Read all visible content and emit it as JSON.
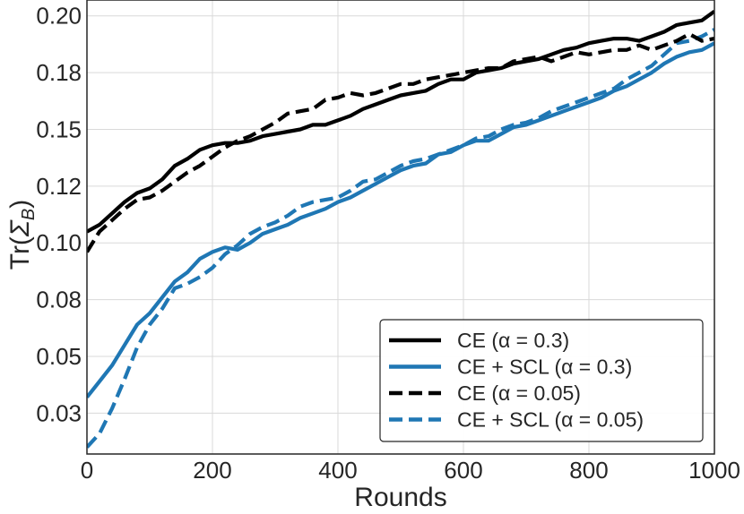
{
  "chart_data": {
    "type": "line",
    "xlabel": "Rounds",
    "ylabel_main": "Tr(",
    "ylabel_sigma": "Σ",
    "ylabel_sub": "B",
    "ylabel_close": ")",
    "xlim": [
      0,
      1000
    ],
    "ylim": [
      0.007,
      0.207
    ],
    "xticks": [
      0,
      200,
      400,
      600,
      800,
      1000
    ],
    "xtick_labels": [
      "0",
      "200",
      "400",
      "600",
      "800",
      "1000"
    ],
    "yticks": [
      0.025,
      0.05,
      0.075,
      0.1,
      0.125,
      0.15,
      0.175,
      0.2
    ],
    "ytick_labels": [
      "0.03",
      "0.05",
      "0.08",
      "0.10",
      "0.12",
      "0.15",
      "0.18",
      "0.20"
    ],
    "grid": true,
    "legend_position": "lower-right",
    "series": [
      {
        "name": "CE (α = 0.3)",
        "color": "#000000",
        "dash": "solid",
        "points": [
          [
            0,
            0.105
          ],
          [
            20,
            0.108
          ],
          [
            40,
            0.113
          ],
          [
            60,
            0.118
          ],
          [
            80,
            0.122
          ],
          [
            100,
            0.124
          ],
          [
            120,
            0.128
          ],
          [
            140,
            0.134
          ],
          [
            160,
            0.137
          ],
          [
            180,
            0.141
          ],
          [
            200,
            0.143
          ],
          [
            220,
            0.144
          ],
          [
            240,
            0.144
          ],
          [
            260,
            0.145
          ],
          [
            280,
            0.147
          ],
          [
            300,
            0.148
          ],
          [
            320,
            0.149
          ],
          [
            340,
            0.15
          ],
          [
            360,
            0.152
          ],
          [
            380,
            0.152
          ],
          [
            400,
            0.154
          ],
          [
            420,
            0.156
          ],
          [
            440,
            0.159
          ],
          [
            460,
            0.161
          ],
          [
            480,
            0.163
          ],
          [
            500,
            0.165
          ],
          [
            520,
            0.166
          ],
          [
            540,
            0.167
          ],
          [
            560,
            0.17
          ],
          [
            580,
            0.172
          ],
          [
            600,
            0.172
          ],
          [
            620,
            0.175
          ],
          [
            640,
            0.176
          ],
          [
            660,
            0.177
          ],
          [
            680,
            0.179
          ],
          [
            700,
            0.18
          ],
          [
            720,
            0.181
          ],
          [
            740,
            0.183
          ],
          [
            760,
            0.185
          ],
          [
            780,
            0.186
          ],
          [
            800,
            0.188
          ],
          [
            820,
            0.189
          ],
          [
            840,
            0.19
          ],
          [
            860,
            0.19
          ],
          [
            880,
            0.189
          ],
          [
            900,
            0.191
          ],
          [
            920,
            0.193
          ],
          [
            940,
            0.196
          ],
          [
            960,
            0.197
          ],
          [
            980,
            0.198
          ],
          [
            1000,
            0.202
          ]
        ]
      },
      {
        "name": "CE + SCL (α = 0.3)",
        "color": "#1f77b4",
        "dash": "solid",
        "points": [
          [
            0,
            0.032
          ],
          [
            20,
            0.039
          ],
          [
            40,
            0.046
          ],
          [
            60,
            0.055
          ],
          [
            80,
            0.064
          ],
          [
            100,
            0.069
          ],
          [
            120,
            0.076
          ],
          [
            140,
            0.083
          ],
          [
            160,
            0.087
          ],
          [
            180,
            0.093
          ],
          [
            200,
            0.096
          ],
          [
            220,
            0.098
          ],
          [
            240,
            0.097
          ],
          [
            260,
            0.1
          ],
          [
            280,
            0.104
          ],
          [
            300,
            0.106
          ],
          [
            320,
            0.108
          ],
          [
            340,
            0.111
          ],
          [
            360,
            0.113
          ],
          [
            380,
            0.115
          ],
          [
            400,
            0.118
          ],
          [
            420,
            0.12
          ],
          [
            440,
            0.123
          ],
          [
            460,
            0.126
          ],
          [
            480,
            0.129
          ],
          [
            500,
            0.132
          ],
          [
            520,
            0.134
          ],
          [
            540,
            0.135
          ],
          [
            560,
            0.139
          ],
          [
            580,
            0.14
          ],
          [
            600,
            0.143
          ],
          [
            620,
            0.145
          ],
          [
            640,
            0.145
          ],
          [
            660,
            0.148
          ],
          [
            680,
            0.151
          ],
          [
            700,
            0.152
          ],
          [
            720,
            0.154
          ],
          [
            740,
            0.156
          ],
          [
            760,
            0.158
          ],
          [
            780,
            0.16
          ],
          [
            800,
            0.162
          ],
          [
            820,
            0.164
          ],
          [
            840,
            0.167
          ],
          [
            860,
            0.169
          ],
          [
            880,
            0.172
          ],
          [
            900,
            0.175
          ],
          [
            920,
            0.179
          ],
          [
            940,
            0.182
          ],
          [
            960,
            0.184
          ],
          [
            980,
            0.185
          ],
          [
            1000,
            0.188
          ]
        ]
      },
      {
        "name": "CE (α = 0.05)",
        "color": "#000000",
        "dash": "dashed",
        "points": [
          [
            0,
            0.096
          ],
          [
            20,
            0.105
          ],
          [
            40,
            0.11
          ],
          [
            60,
            0.115
          ],
          [
            80,
            0.119
          ],
          [
            100,
            0.12
          ],
          [
            120,
            0.123
          ],
          [
            140,
            0.127
          ],
          [
            160,
            0.131
          ],
          [
            180,
            0.134
          ],
          [
            200,
            0.138
          ],
          [
            220,
            0.142
          ],
          [
            240,
            0.145
          ],
          [
            260,
            0.147
          ],
          [
            280,
            0.15
          ],
          [
            300,
            0.153
          ],
          [
            320,
            0.157
          ],
          [
            340,
            0.158
          ],
          [
            360,
            0.159
          ],
          [
            380,
            0.163
          ],
          [
            400,
            0.164
          ],
          [
            420,
            0.166
          ],
          [
            440,
            0.165
          ],
          [
            460,
            0.166
          ],
          [
            480,
            0.168
          ],
          [
            500,
            0.17
          ],
          [
            520,
            0.17
          ],
          [
            540,
            0.172
          ],
          [
            560,
            0.173
          ],
          [
            580,
            0.174
          ],
          [
            600,
            0.175
          ],
          [
            620,
            0.176
          ],
          [
            640,
            0.177
          ],
          [
            660,
            0.177
          ],
          [
            680,
            0.18
          ],
          [
            700,
            0.181
          ],
          [
            720,
            0.182
          ],
          [
            740,
            0.18
          ],
          [
            760,
            0.182
          ],
          [
            780,
            0.184
          ],
          [
            800,
            0.183
          ],
          [
            820,
            0.184
          ],
          [
            840,
            0.185
          ],
          [
            860,
            0.185
          ],
          [
            880,
            0.187
          ],
          [
            900,
            0.185
          ],
          [
            920,
            0.187
          ],
          [
            940,
            0.189
          ],
          [
            960,
            0.192
          ],
          [
            980,
            0.189
          ],
          [
            1000,
            0.19
          ]
        ]
      },
      {
        "name": "CE + SCL (α = 0.05)",
        "color": "#1f77b4",
        "dash": "dashed",
        "points": [
          [
            0,
            0.01
          ],
          [
            20,
            0.016
          ],
          [
            40,
            0.027
          ],
          [
            60,
            0.04
          ],
          [
            80,
            0.054
          ],
          [
            100,
            0.064
          ],
          [
            120,
            0.071
          ],
          [
            140,
            0.08
          ],
          [
            160,
            0.082
          ],
          [
            180,
            0.085
          ],
          [
            200,
            0.089
          ],
          [
            220,
            0.095
          ],
          [
            240,
            0.099
          ],
          [
            260,
            0.104
          ],
          [
            280,
            0.107
          ],
          [
            300,
            0.109
          ],
          [
            320,
            0.112
          ],
          [
            340,
            0.116
          ],
          [
            360,
            0.118
          ],
          [
            380,
            0.119
          ],
          [
            400,
            0.12
          ],
          [
            420,
            0.123
          ],
          [
            440,
            0.127
          ],
          [
            460,
            0.128
          ],
          [
            480,
            0.131
          ],
          [
            500,
            0.134
          ],
          [
            520,
            0.136
          ],
          [
            540,
            0.137
          ],
          [
            560,
            0.139
          ],
          [
            580,
            0.141
          ],
          [
            600,
            0.143
          ],
          [
            620,
            0.146
          ],
          [
            640,
            0.147
          ],
          [
            660,
            0.15
          ],
          [
            680,
            0.152
          ],
          [
            700,
            0.153
          ],
          [
            720,
            0.155
          ],
          [
            740,
            0.158
          ],
          [
            760,
            0.16
          ],
          [
            780,
            0.162
          ],
          [
            800,
            0.164
          ],
          [
            820,
            0.166
          ],
          [
            840,
            0.168
          ],
          [
            860,
            0.172
          ],
          [
            880,
            0.175
          ],
          [
            900,
            0.178
          ],
          [
            920,
            0.183
          ],
          [
            940,
            0.188
          ],
          [
            960,
            0.189
          ],
          [
            980,
            0.191
          ],
          [
            1000,
            0.194
          ]
        ]
      }
    ]
  }
}
